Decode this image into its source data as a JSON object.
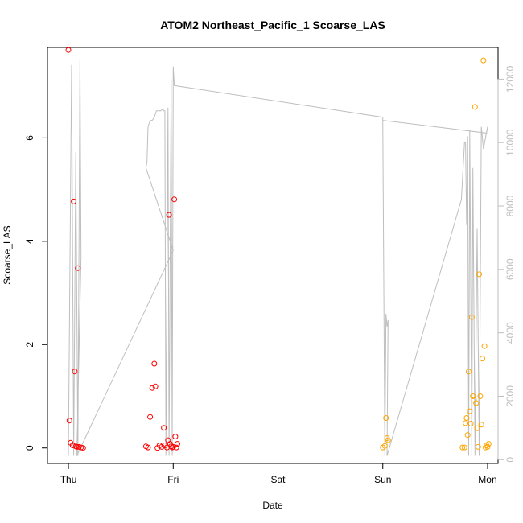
{
  "chart_data": {
    "type": "scatter",
    "title": "ATOM2 Northeast_Pacific_1 Scoarse_LAS",
    "xlabel": "Date",
    "ylabel": "Scoarse_LAS",
    "x_ticks": [
      "Thu",
      "Fri",
      "Sat",
      "Sun",
      "Mon"
    ],
    "xlim": [
      -0.2,
      4.1
    ],
    "ylim": [
      -0.3,
      7.75
    ],
    "y_ticks": [
      0,
      2,
      4,
      6
    ],
    "y2_ticks": [
      0,
      2000,
      4000,
      6000,
      8000,
      10000,
      12000
    ],
    "y2lim": [
      -120,
      13000
    ],
    "colors": {
      "red": "#ff0000",
      "orange": "#ffa500",
      "line": "#bebebe"
    },
    "series": [
      {
        "color": "red",
        "points": [
          [
            0.0,
            7.7
          ],
          [
            0.01,
            0.53
          ],
          [
            0.02,
            0.1
          ],
          [
            0.04,
            0.05
          ],
          [
            0.05,
            4.77
          ],
          [
            0.06,
            1.48
          ],
          [
            0.07,
            0.03
          ],
          [
            0.08,
            0.02
          ],
          [
            0.09,
            3.48
          ],
          [
            0.1,
            0.02
          ],
          [
            0.12,
            0.01
          ],
          [
            0.14,
            0.0
          ],
          [
            0.74,
            0.03
          ],
          [
            0.76,
            0.01
          ],
          [
            0.78,
            0.6
          ],
          [
            0.8,
            1.16
          ],
          [
            0.82,
            1.63
          ],
          [
            0.83,
            1.19
          ],
          [
            0.85,
            0.0
          ],
          [
            0.87,
            0.05
          ],
          [
            0.89,
            0.02
          ],
          [
            0.91,
            0.39
          ],
          [
            0.92,
            0.05
          ],
          [
            0.94,
            0.01
          ],
          [
            0.95,
            0.15
          ],
          [
            0.96,
            4.51
          ],
          [
            0.97,
            0.08
          ],
          [
            0.98,
            0.03
          ],
          [
            0.99,
            0.01
          ],
          [
            1.0,
            0.02
          ],
          [
            1.01,
            4.81
          ],
          [
            1.02,
            0.22
          ],
          [
            1.03,
            0.01
          ],
          [
            1.04,
            0.08
          ]
        ]
      },
      {
        "color": "orange",
        "points": [
          [
            3.0,
            0.01
          ],
          [
            3.02,
            0.04
          ],
          [
            3.03,
            0.58
          ],
          [
            3.04,
            0.19
          ],
          [
            3.05,
            0.15
          ],
          [
            3.76,
            0.01
          ],
          [
            3.78,
            0.01
          ],
          [
            3.79,
            0.48
          ],
          [
            3.8,
            0.58
          ],
          [
            3.81,
            0.25
          ],
          [
            3.82,
            1.48
          ],
          [
            3.83,
            0.71
          ],
          [
            3.84,
            0.47
          ],
          [
            3.85,
            2.53
          ],
          [
            3.86,
            1.0
          ],
          [
            3.87,
            0.93
          ],
          [
            3.88,
            6.6
          ],
          [
            3.89,
            0.87
          ],
          [
            3.9,
            0.38
          ],
          [
            3.91,
            0.02
          ],
          [
            3.92,
            3.36
          ],
          [
            3.93,
            1.0
          ],
          [
            3.94,
            0.45
          ],
          [
            3.95,
            1.73
          ],
          [
            3.96,
            7.5
          ],
          [
            3.97,
            1.97
          ],
          [
            3.98,
            0.01
          ],
          [
            3.99,
            0.05
          ],
          [
            4.0,
            0.02
          ],
          [
            4.01,
            0.08
          ]
        ]
      }
    ],
    "line_series": {
      "color": "line",
      "axis": "right",
      "points": [
        [
          0.0,
          120
        ],
        [
          0.03,
          12450
        ],
        [
          0.05,
          120
        ],
        [
          0.07,
          9700
        ],
        [
          0.09,
          120
        ],
        [
          0.11,
          12650
        ],
        [
          0.12,
          6400
        ],
        [
          0.08,
          120
        ],
        [
          1.0,
          6600
        ],
        [
          0.74,
          9200
        ],
        [
          0.75,
          9400
        ],
        [
          0.76,
          10500
        ],
        [
          0.78,
          10700
        ],
        [
          0.8,
          10700
        ],
        [
          0.82,
          10800
        ],
        [
          0.84,
          11000
        ],
        [
          0.88,
          11000
        ],
        [
          0.9,
          11050
        ],
        [
          0.91,
          11000
        ],
        [
          0.92,
          11000
        ],
        [
          0.93,
          120
        ],
        [
          0.95,
          11100
        ],
        [
          0.96,
          120
        ],
        [
          0.98,
          12000
        ],
        [
          0.99,
          120
        ],
        [
          1.0,
          12400
        ],
        [
          1.01,
          11800
        ],
        [
          3.0,
          10800
        ],
        [
          3.02,
          120
        ],
        [
          3.03,
          4600
        ],
        [
          3.04,
          4200
        ],
        [
          3.05,
          4400
        ],
        [
          3.04,
          120
        ],
        [
          3.75,
          8200
        ],
        [
          3.78,
          10000
        ],
        [
          3.79,
          10000
        ],
        [
          3.8,
          7400
        ],
        [
          3.81,
          10200
        ],
        [
          3.82,
          120
        ],
        [
          3.83,
          10400
        ],
        [
          3.85,
          120
        ],
        [
          3.86,
          9200
        ],
        [
          3.88,
          120
        ],
        [
          3.9,
          7300
        ],
        [
          3.92,
          120
        ],
        [
          3.94,
          10500
        ],
        [
          3.96,
          9800
        ],
        [
          4.0,
          10500
        ],
        [
          3.99,
          10300
        ],
        [
          3.0,
          10700
        ]
      ]
    }
  }
}
